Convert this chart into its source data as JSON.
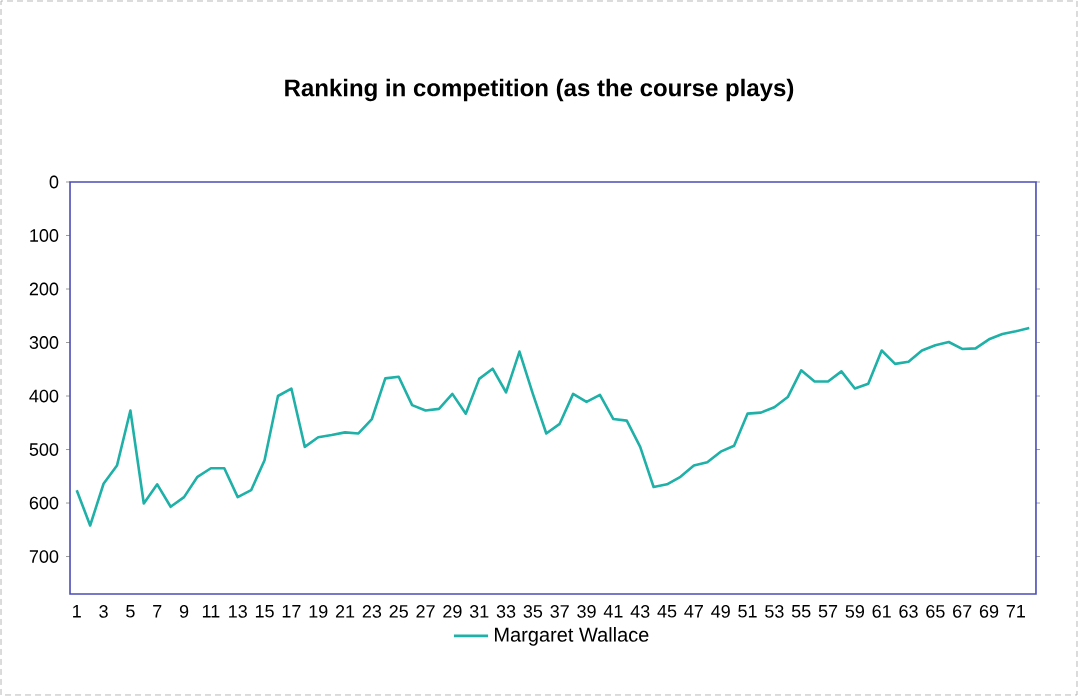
{
  "chart_data": {
    "type": "line",
    "title": "Ranking in competition (as the course plays)",
    "categories": [
      "1",
      null,
      "3",
      null,
      "5",
      null,
      "7",
      null,
      "9",
      null,
      "11",
      null,
      "13",
      null,
      "15",
      null,
      "17",
      null,
      "19",
      null,
      "21",
      null,
      "23",
      null,
      "25",
      null,
      "27",
      null,
      "29",
      null,
      "31",
      null,
      "33",
      null,
      "35",
      null,
      "37",
      null,
      "39",
      null,
      "41",
      null,
      "43",
      null,
      "45",
      null,
      "47",
      null,
      "49",
      null,
      "51",
      null,
      "53",
      null,
      "55",
      null,
      "57",
      null,
      "59",
      null,
      "61",
      null,
      "63",
      null,
      "65",
      null,
      "67",
      null,
      "69",
      null,
      "71",
      null
    ],
    "series": [
      {
        "name": "Margaret Wallace",
        "color": "#1fb0a8",
        "values": [
          576,
          642,
          564,
          530,
          427,
          601,
          565,
          607,
          589,
          551,
          535,
          535,
          589,
          576,
          520,
          400,
          386,
          495,
          477,
          473,
          468,
          470,
          443,
          367,
          364,
          417,
          427,
          424,
          396,
          433,
          368,
          349,
          393,
          317,
          396,
          470,
          452,
          396,
          411,
          398,
          443,
          446,
          495,
          570,
          565,
          551,
          530,
          524,
          504,
          493,
          433,
          431,
          421,
          402,
          352,
          373,
          373,
          354,
          386,
          377,
          315,
          340,
          336,
          315,
          305,
          299,
          312,
          311,
          294,
          284,
          279,
          273
        ]
      }
    ],
    "ylim": [
      770,
      0
    ],
    "yticks": [
      0,
      100,
      200,
      300,
      400,
      500,
      600,
      700
    ],
    "grid": false,
    "legend": "bottom",
    "marker": "none",
    "line_style": "solid"
  }
}
